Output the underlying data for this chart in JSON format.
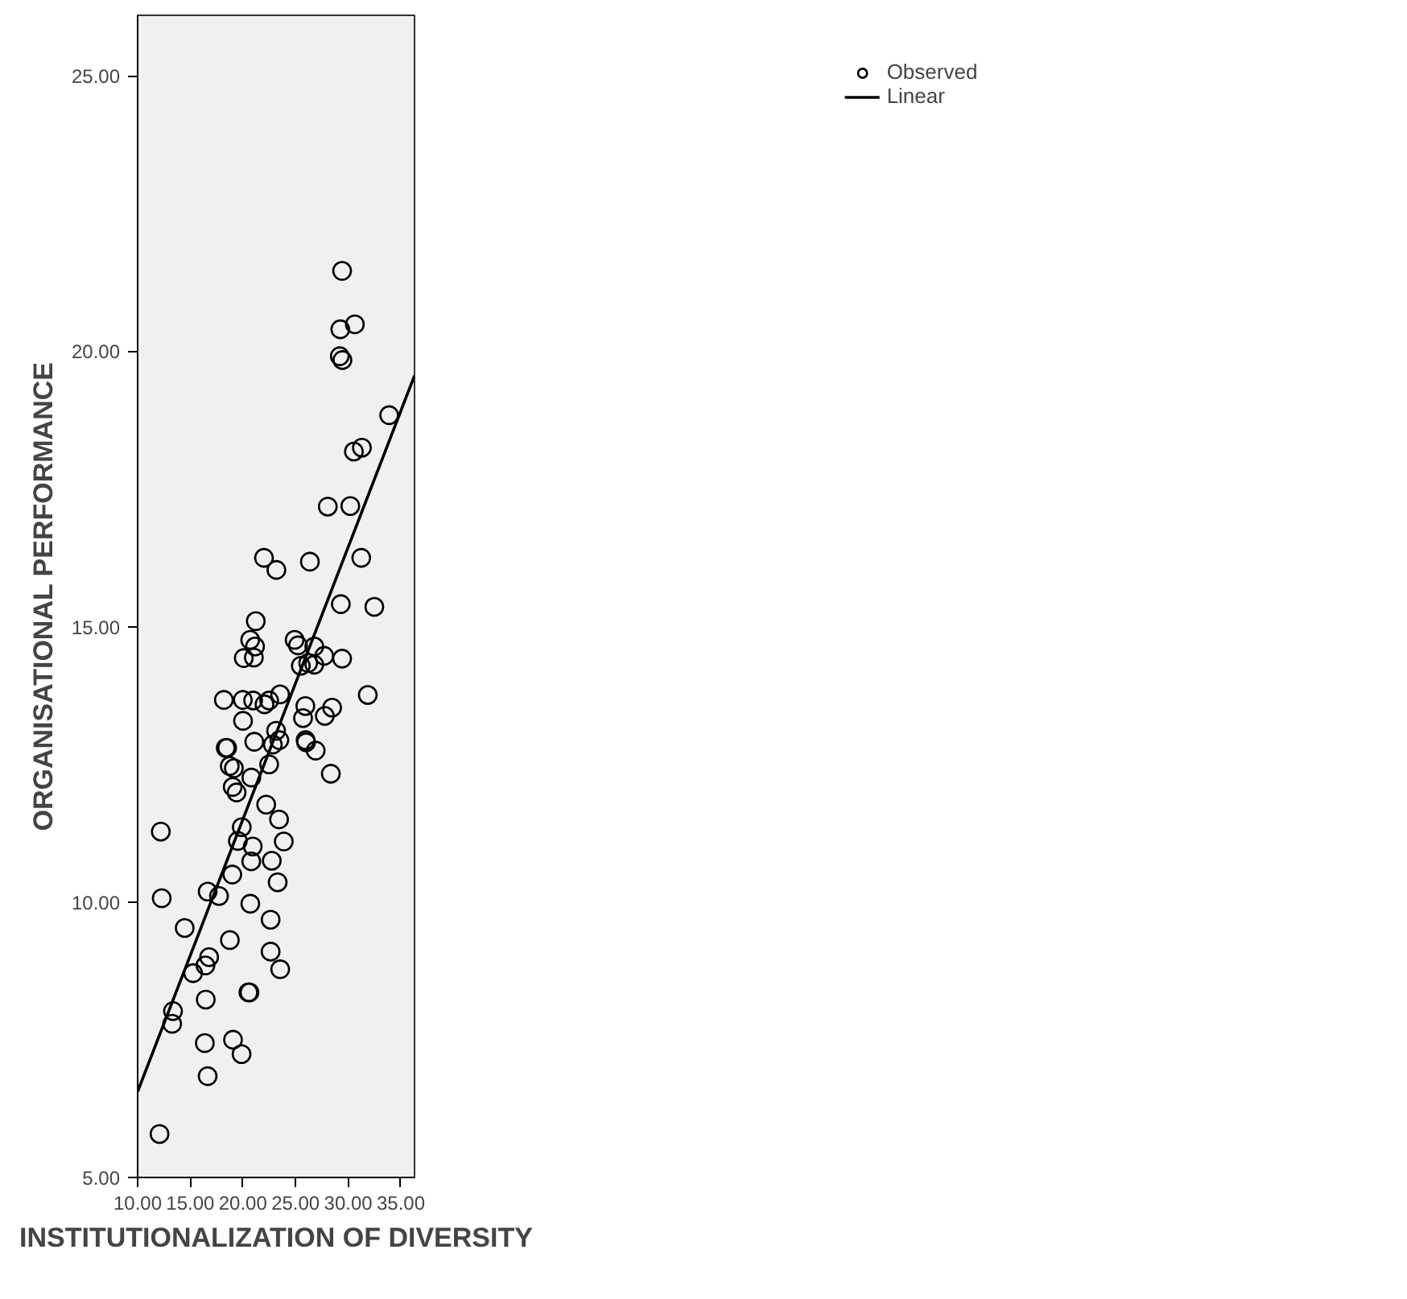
{
  "chart_data": {
    "type": "scatter",
    "xlabel": "INSTITUTIONALIZATION OF DIVERSITY",
    "ylabel": "ORGANISATIONAL PERFORMANCE",
    "xlim": [
      10,
      36.3
    ],
    "ylim": [
      5,
      26.1
    ],
    "xticks": [
      {
        "value": 10,
        "label": "10.00"
      },
      {
        "value": 15,
        "label": "15.00"
      },
      {
        "value": 20,
        "label": "20.00"
      },
      {
        "value": 25,
        "label": "25.00"
      },
      {
        "value": 30,
        "label": "30.00"
      },
      {
        "value": 35,
        "label": "35.00"
      }
    ],
    "yticks": [
      {
        "value": 5,
        "label": "5.00"
      },
      {
        "value": 10,
        "label": "10.00"
      },
      {
        "value": 15,
        "label": "15.00"
      },
      {
        "value": 20,
        "label": "20.00"
      },
      {
        "value": 25,
        "label": "25.00"
      }
    ],
    "grid": false,
    "legend": "top right",
    "series": [
      {
        "name": "Observed",
        "marker": "circle",
        "color": "#000000",
        "x": [
          12.29,
          16.65,
          17.73,
          20.7,
          14.47,
          18.76,
          15.27,
          16.44,
          16.79,
          16.47,
          13.36,
          13.28,
          20.52,
          20.62,
          16.38,
          19.06,
          19.87,
          16.65,
          12.08,
          22.63,
          22.63,
          21.22,
          20.69,
          21.15,
          21.04,
          20.08,
          24.91,
          25.23,
          25.5,
          18.19,
          19.99,
          20.97,
          22.05,
          22.49,
          23.53,
          20.01,
          21.08,
          23.15,
          22.84,
          23.46,
          18.37,
          18.5,
          18.75,
          19.14,
          19.03,
          19.4,
          20.8,
          22.49,
          22.21,
          23.43,
          23.88,
          19.89,
          19.52,
          20.93,
          20.79,
          22.74,
          23.3,
          18.99,
          23.54,
          23.18,
          26.36,
          31.24,
          29.3,
          32.48,
          26.2,
          26.78,
          26.78,
          27.72,
          29.42,
          31.86,
          25.93,
          25.71,
          25.95,
          26.0,
          26.91,
          27.78,
          28.47,
          28.35,
          29.42,
          29.25,
          30.63,
          29.2,
          29.45,
          33.89,
          30.54,
          31.3,
          28.06,
          30.2,
          12.2,
          22.0
        ],
        "values": [
          10.07,
          10.19,
          10.11,
          9.97,
          9.53,
          9.31,
          8.71,
          8.85,
          9.0,
          8.23,
          8.02,
          7.79,
          8.36,
          8.36,
          7.44,
          7.5,
          7.24,
          6.84,
          5.79,
          9.68,
          9.1,
          15.1,
          14.76,
          14.64,
          14.44,
          14.43,
          14.76,
          14.66,
          14.29,
          13.67,
          13.67,
          13.66,
          13.59,
          13.66,
          13.77,
          13.29,
          12.91,
          13.11,
          12.86,
          12.94,
          12.8,
          12.8,
          12.47,
          12.43,
          12.09,
          11.99,
          12.26,
          12.5,
          11.77,
          11.5,
          11.1,
          11.36,
          11.11,
          11.01,
          10.74,
          10.75,
          10.36,
          10.5,
          8.78,
          16.03,
          16.18,
          16.25,
          15.41,
          15.36,
          14.34,
          14.64,
          14.31,
          14.47,
          14.42,
          13.76,
          13.56,
          13.34,
          12.94,
          12.9,
          12.75,
          13.38,
          13.53,
          12.33,
          21.46,
          20.4,
          20.49,
          19.91,
          19.84,
          18.84,
          18.18,
          18.25,
          17.18,
          17.19,
          11.28,
          16.25
        ]
      },
      {
        "name": "Linear",
        "type": "line",
        "color": "#000000",
        "x": [
          10,
          36.3
        ],
        "values": [
          6.56,
          19.56
        ]
      }
    ]
  }
}
